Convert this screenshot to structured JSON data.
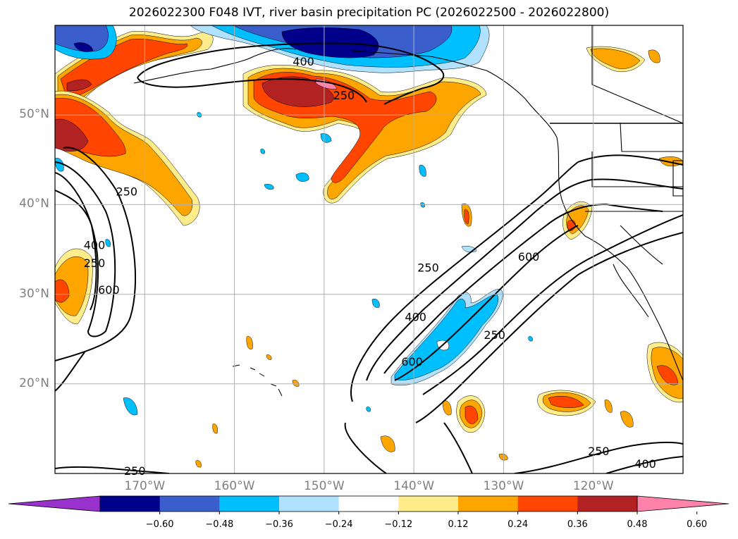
{
  "title": "2026022300 F048 IVT, river basin precipitation PC (2026022500 - 2026022800)",
  "map": {
    "lon_range": [
      -180,
      -110
    ],
    "lat_range": [
      10,
      60
    ],
    "lat_labels": [
      {
        "lat": 50,
        "text": "50°N"
      },
      {
        "lat": 40,
        "text": "40°N"
      },
      {
        "lat": 30,
        "text": "30°N"
      },
      {
        "lat": 20,
        "text": "20°N"
      }
    ],
    "lon_labels": [
      {
        "lon": -170,
        "text": "170°W"
      },
      {
        "lon": -160,
        "text": "160°W"
      },
      {
        "lon": -150,
        "text": "150°W"
      },
      {
        "lon": -140,
        "text": "140°W"
      },
      {
        "lon": -130,
        "text": "130°W"
      },
      {
        "lon": -120,
        "text": "120°W"
      }
    ],
    "contour_labels": [
      {
        "text": "400",
        "lon": -152.3,
        "lat": 56.0
      },
      {
        "text": "250",
        "lon": -147.8,
        "lat": 52.2
      },
      {
        "text": "250",
        "lon": -172.0,
        "lat": 41.5
      },
      {
        "text": "400",
        "lon": -175.6,
        "lat": 35.5
      },
      {
        "text": "250",
        "lon": -175.6,
        "lat": 33.5
      },
      {
        "text": "600",
        "lon": -174.0,
        "lat": 30.5
      },
      {
        "text": "250",
        "lon": -138.4,
        "lat": 33.0
      },
      {
        "text": "600",
        "lon": -127.2,
        "lat": 34.2
      },
      {
        "text": "400",
        "lon": -139.8,
        "lat": 27.5
      },
      {
        "text": "250",
        "lon": -131.0,
        "lat": 25.5
      },
      {
        "text": "600",
        "lon": -140.2,
        "lat": 22.5
      },
      {
        "text": "250",
        "lon": -119.4,
        "lat": 12.5
      },
      {
        "text": "400",
        "lon": -114.2,
        "lat": 11.1
      },
      {
        "text": "250",
        "lon": -171.1,
        "lat": 10.3
      }
    ]
  },
  "colorbar": {
    "ticks": [
      "−0.60",
      "−0.48",
      "−0.36",
      "−0.24",
      "−0.12",
      "0.12",
      "0.24",
      "0.36",
      "0.48",
      "0.60"
    ],
    "colors": [
      "#9932cc",
      "#00008b",
      "#3a5fcd",
      "#00bfff",
      "#b0e2ff",
      "#ffffff",
      "#ffec8b",
      "#ffa500",
      "#ff4500",
      "#b22222",
      "#ff82ab"
    ]
  }
}
